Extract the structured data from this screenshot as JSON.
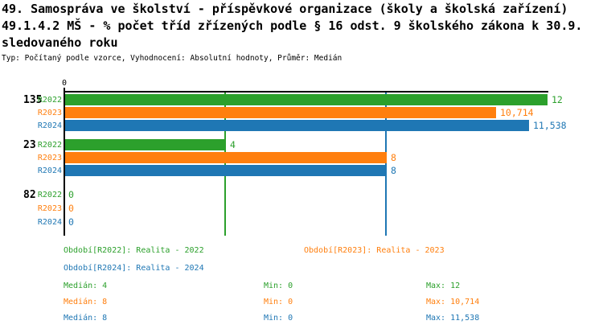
{
  "header": {
    "title_line1": "49. Samospráva ve školství - příspěvkové organizace (školy a školská zařízení)",
    "title_line2": "49.1.4.2 MŠ - % počet tříd zřízených podle § 16 odst. 9 školského zákona k 30.9.",
    "title_line3": "sledovaného roku",
    "meta_line": "Typ: Počítaný podle vzorce, Vyhodnocení: Absolutní hodnoty, Průměr: Medián"
  },
  "colors": {
    "R2022": "#2ca02c",
    "R2023": "#ff7f0e",
    "R2024": "#1f77b4",
    "axis": "#000000"
  },
  "chart_data": {
    "type": "bar",
    "orientation": "horizontal",
    "xlim": [
      0,
      12
    ],
    "x_tick_labels": [
      "0"
    ],
    "grid": false,
    "series": [
      "R2022",
      "R2023",
      "R2024"
    ],
    "groups": [
      {
        "label": "135",
        "bars": [
          {
            "series": "R2022",
            "value": 12,
            "display": "12"
          },
          {
            "series": "R2023",
            "value": 10.714,
            "display": "10,714"
          },
          {
            "series": "R2024",
            "value": 11.538,
            "display": "11,538"
          }
        ]
      },
      {
        "label": "23",
        "bars": [
          {
            "series": "R2022",
            "value": 4,
            "display": "4"
          },
          {
            "series": "R2023",
            "value": 8,
            "display": "8"
          },
          {
            "series": "R2024",
            "value": 8,
            "display": "8"
          }
        ]
      },
      {
        "label": "82",
        "bars": [
          {
            "series": "R2022",
            "value": 0,
            "display": "0"
          },
          {
            "series": "R2023",
            "value": 0,
            "display": "0"
          },
          {
            "series": "R2024",
            "value": 0,
            "display": "0"
          }
        ]
      }
    ],
    "median_lines": [
      {
        "series": "R2022",
        "value": 4
      },
      {
        "series": "R2023",
        "value": 8
      },
      {
        "series": "R2024",
        "value": 8
      }
    ]
  },
  "legend": {
    "periods": [
      {
        "series": "R2022",
        "label": "Období[R2022]: Realita - 2022"
      },
      {
        "series": "R2023",
        "label": "Období[R2023]: Realita - 2023"
      },
      {
        "series": "R2024",
        "label": "Období[R2024]: Realita - 2024"
      }
    ],
    "stats": [
      {
        "series": "R2022",
        "median": "Medián: 4",
        "min": "Min: 0",
        "max": "Max: 12"
      },
      {
        "series": "R2023",
        "median": "Medián: 8",
        "min": "Min: 0",
        "max": "Max: 10,714"
      },
      {
        "series": "R2024",
        "median": "Medián: 8",
        "min": "Min: 0",
        "max": "Max: 11,538"
      }
    ]
  }
}
